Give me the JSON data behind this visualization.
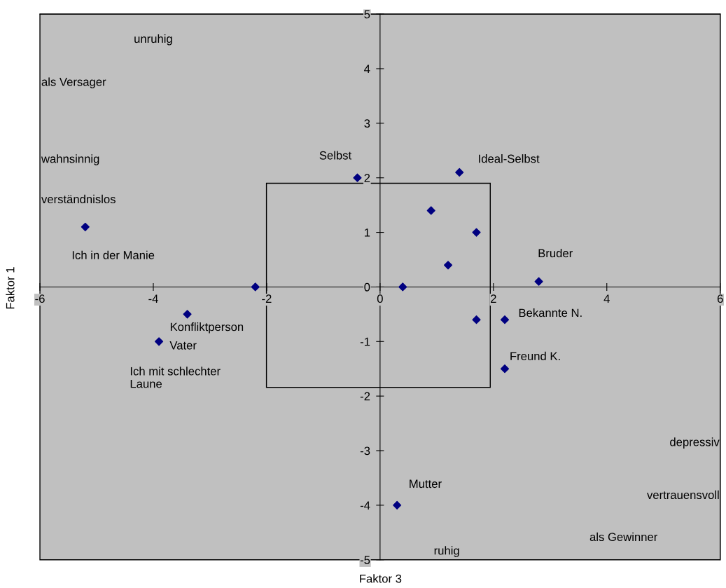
{
  "chart_data": {
    "type": "scatter",
    "xlabel": "Faktor 3",
    "ylabel": "Faktor 1",
    "x": [
      -5.2,
      -2.2,
      -3.4,
      -3.9,
      -0.4,
      1.4,
      0.9,
      1.7,
      1.2,
      0.4,
      1.7,
      2.2,
      2.2,
      2.8,
      0.3
    ],
    "series": [
      {
        "color": "#000080",
        "values": [
          1.1,
          0.0,
          -0.5,
          -1.0,
          2.0,
          2.1,
          1.4,
          1.0,
          0.4,
          0.0,
          -0.6,
          -0.6,
          -1.5,
          0.1,
          -4.0
        ]
      }
    ],
    "marker": "diamond",
    "grid": false,
    "legend": false,
    "xlim": [
      -6,
      6
    ],
    "ylim": [
      -5,
      5
    ],
    "xticks": [
      -6,
      -4,
      -2,
      0,
      2,
      4,
      6
    ],
    "yticks": [
      -5,
      -4,
      -3,
      -2,
      -1,
      0,
      1,
      2,
      3,
      4,
      5
    ],
    "annotations": [
      {
        "text": "Ich in der Manie",
        "x": -5.2,
        "y": 1.1
      },
      {
        "text": "Konfliktperson",
        "x": -3.4,
        "y": -0.5
      },
      {
        "text": "Vater",
        "x": -3.9,
        "y": -1.0
      },
      {
        "text": "Ich mit schlechter\nLaune",
        "x": -3.9,
        "y": -1.0
      },
      {
        "text": "Selbst",
        "x": -0.4,
        "y": 2.0
      },
      {
        "text": "Ideal-Selbst",
        "x": 1.4,
        "y": 2.1
      },
      {
        "text": "Bruder",
        "x": 2.8,
        "y": 0.1
      },
      {
        "text": "Bekannte N.",
        "x": 2.2,
        "y": -0.6
      },
      {
        "text": "Freund K.",
        "x": 2.2,
        "y": -1.5
      },
      {
        "text": "Mutter",
        "x": 0.3,
        "y": -4.0
      },
      "unruhig",
      "als Versager",
      "wahnsinnig",
      "verständnislos",
      "depressiv",
      "vertrauensvoll",
      "als Gewinner",
      "ruhig"
    ]
  }
}
